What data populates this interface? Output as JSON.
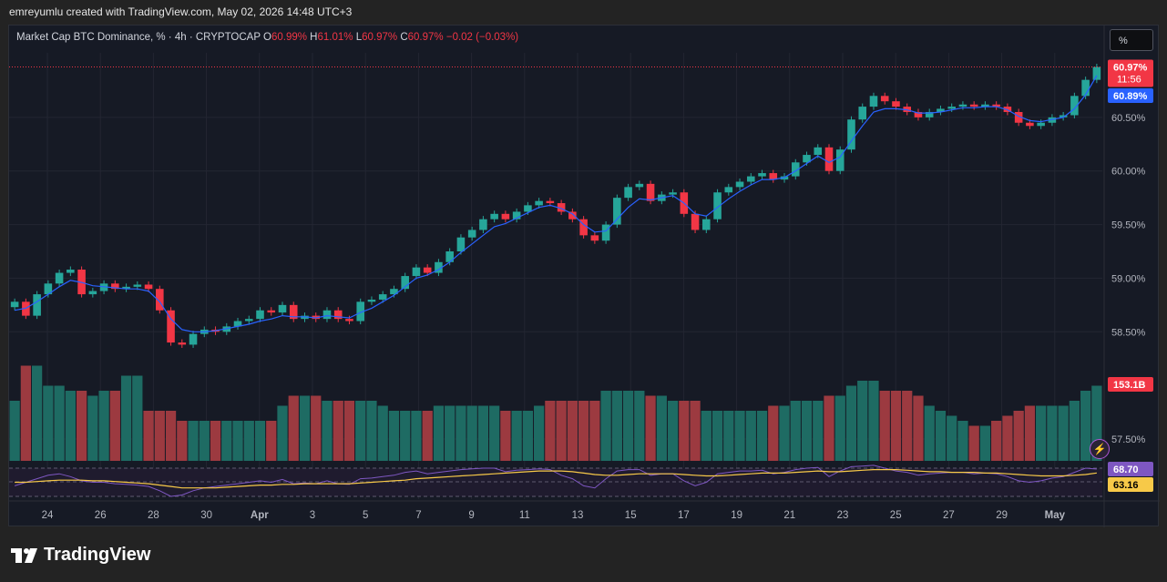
{
  "header": {
    "text": "emreyumlu created with TradingView.com, May 02, 2026 14:48 UTC+3"
  },
  "legend": {
    "symbol": "Market Cap BTC Dominance, % · 4h · CRYPTOCAP",
    "open_label": "O",
    "open": "60.99%",
    "high_label": "H",
    "high": "61.01%",
    "low_label": "L",
    "low": "60.97%",
    "close_label": "C",
    "close": "60.97%",
    "change": "−0.02 (−0.03%)"
  },
  "scale_button": "%",
  "price_labels": {
    "last": "60.97%",
    "countdown": "11:56",
    "ma": "60.89%",
    "volume": "153.1B",
    "rsi": "68.70",
    "rsi_ma": "63.16"
  },
  "brand": "TradingView",
  "colors": {
    "up": "#26a69a",
    "down": "#f23645",
    "ma": "#2962ff",
    "rsi": "#7e57c2",
    "rsi_ma": "#f7c948",
    "bg": "#161a25"
  },
  "chart_data": {
    "type": "candlestick",
    "timeframe": "4h",
    "y_ticks": [
      "60.50%",
      "60.00%",
      "59.50%",
      "59.00%",
      "58.50%",
      "57.50%"
    ],
    "ylim": [
      57.4,
      61.2
    ],
    "x_ticks": [
      "24",
      "26",
      "28",
      "30",
      "Apr",
      "3",
      "5",
      "7",
      "9",
      "11",
      "13",
      "15",
      "17",
      "19",
      "21",
      "23",
      "25",
      "27",
      "29",
      "May"
    ],
    "close_series": [
      58.78,
      58.65,
      58.85,
      58.95,
      59.05,
      59.08,
      58.85,
      58.88,
      58.95,
      58.9,
      58.92,
      58.94,
      58.9,
      58.7,
      58.4,
      58.38,
      58.48,
      58.52,
      58.5,
      58.55,
      58.6,
      58.62,
      58.7,
      58.68,
      58.75,
      58.62,
      58.65,
      58.62,
      58.7,
      58.62,
      58.6,
      58.78,
      58.8,
      58.85,
      58.9,
      59.02,
      59.1,
      59.05,
      59.15,
      59.25,
      59.38,
      59.45,
      59.55,
      59.6,
      59.55,
      59.62,
      59.68,
      59.72,
      59.7,
      59.62,
      59.55,
      59.4,
      59.35,
      59.5,
      59.75,
      59.85,
      59.88,
      59.72,
      59.78,
      59.8,
      59.6,
      59.45,
      59.55,
      59.8,
      59.85,
      59.9,
      59.95,
      59.98,
      59.92,
      59.95,
      60.08,
      60.15,
      60.22,
      60.0,
      60.2,
      60.48,
      60.6,
      60.7,
      60.65,
      60.6,
      60.55,
      60.5,
      60.55,
      60.58,
      60.6,
      60.62,
      60.6,
      60.62,
      60.6,
      60.55,
      60.45,
      60.42,
      60.45,
      60.5,
      60.52,
      60.7,
      60.85,
      60.97
    ],
    "ma_series": [
      58.7,
      58.72,
      58.78,
      58.85,
      58.92,
      58.98,
      58.96,
      58.93,
      58.92,
      58.91,
      58.9,
      58.9,
      58.88,
      58.78,
      58.62,
      58.52,
      58.5,
      58.5,
      58.51,
      58.53,
      58.55,
      58.57,
      58.6,
      58.62,
      58.65,
      58.64,
      58.64,
      58.63,
      58.65,
      58.64,
      58.63,
      58.68,
      58.72,
      58.78,
      58.84,
      58.92,
      59.0,
      59.03,
      59.08,
      59.15,
      59.24,
      59.32,
      59.4,
      59.48,
      59.51,
      59.56,
      59.61,
      59.66,
      59.68,
      59.65,
      59.6,
      59.5,
      59.43,
      59.44,
      59.55,
      59.66,
      59.74,
      59.73,
      59.75,
      59.77,
      59.7,
      59.6,
      59.58,
      59.66,
      59.74,
      59.81,
      59.87,
      59.92,
      59.92,
      59.94,
      60.0,
      60.07,
      60.14,
      60.08,
      60.13,
      60.28,
      60.42,
      60.55,
      60.58,
      60.58,
      60.57,
      60.54,
      60.54,
      60.55,
      60.57,
      60.59,
      60.59,
      60.6,
      60.6,
      60.57,
      60.51,
      60.47,
      60.46,
      60.48,
      60.5,
      60.58,
      60.71,
      60.89
    ],
    "volume_series": [
      60,
      95,
      95,
      75,
      75,
      70,
      70,
      65,
      70,
      70,
      85,
      85,
      50,
      50,
      50,
      40,
      40,
      40,
      40,
      40,
      40,
      40,
      40,
      40,
      55,
      65,
      65,
      65,
      60,
      60,
      60,
      60,
      60,
      55,
      50,
      50,
      50,
      50,
      55,
      55,
      55,
      55,
      55,
      55,
      50,
      50,
      50,
      55,
      60,
      60,
      60,
      60,
      60,
      70,
      70,
      70,
      70,
      65,
      65,
      60,
      60,
      60,
      50,
      50,
      50,
      50,
      50,
      50,
      55,
      55,
      60,
      60,
      60,
      65,
      65,
      75,
      80,
      80,
      70,
      70,
      70,
      65,
      55,
      50,
      45,
      40,
      35,
      35,
      40,
      45,
      50,
      55,
      55,
      55,
      55,
      60,
      70,
      75
    ],
    "rsi_series": [
      45,
      50,
      55,
      60,
      62,
      58,
      52,
      50,
      50,
      48,
      47,
      46,
      44,
      38,
      30,
      32,
      38,
      42,
      44,
      46,
      48,
      50,
      52,
      50,
      54,
      48,
      49,
      48,
      52,
      48,
      47,
      55,
      56,
      58,
      60,
      64,
      66,
      62,
      64,
      66,
      68,
      69,
      70,
      70,
      65,
      67,
      68,
      69,
      68,
      60,
      55,
      45,
      42,
      55,
      66,
      68,
      68,
      60,
      62,
      62,
      52,
      45,
      50,
      62,
      64,
      66,
      66,
      67,
      62,
      64,
      68,
      70,
      71,
      58,
      66,
      72,
      73,
      74,
      70,
      66,
      64,
      60,
      62,
      63,
      64,
      64,
      62,
      63,
      62,
      58,
      52,
      50,
      52,
      56,
      58,
      64,
      70,
      68.7
    ],
    "rsi_ma_series": [
      50,
      50,
      51,
      52,
      53,
      53,
      53,
      52,
      52,
      51,
      50,
      49,
      48,
      46,
      44,
      42,
      42,
      42,
      42,
      43,
      44,
      45,
      46,
      46,
      47,
      47,
      48,
      48,
      48,
      48,
      48,
      49,
      50,
      51,
      52,
      53,
      55,
      56,
      57,
      58,
      59,
      60,
      61,
      62,
      63,
      64,
      65,
      66,
      66,
      66,
      65,
      63,
      61,
      60,
      60,
      61,
      62,
      62,
      62,
      62,
      61,
      60,
      59,
      59,
      60,
      61,
      62,
      63,
      63,
      63,
      64,
      65,
      66,
      65,
      65,
      66,
      67,
      68,
      68,
      68,
      67,
      66,
      65,
      65,
      64,
      64,
      64,
      63,
      63,
      62,
      61,
      60,
      59,
      59,
      59,
      60,
      61,
      63.16
    ]
  }
}
